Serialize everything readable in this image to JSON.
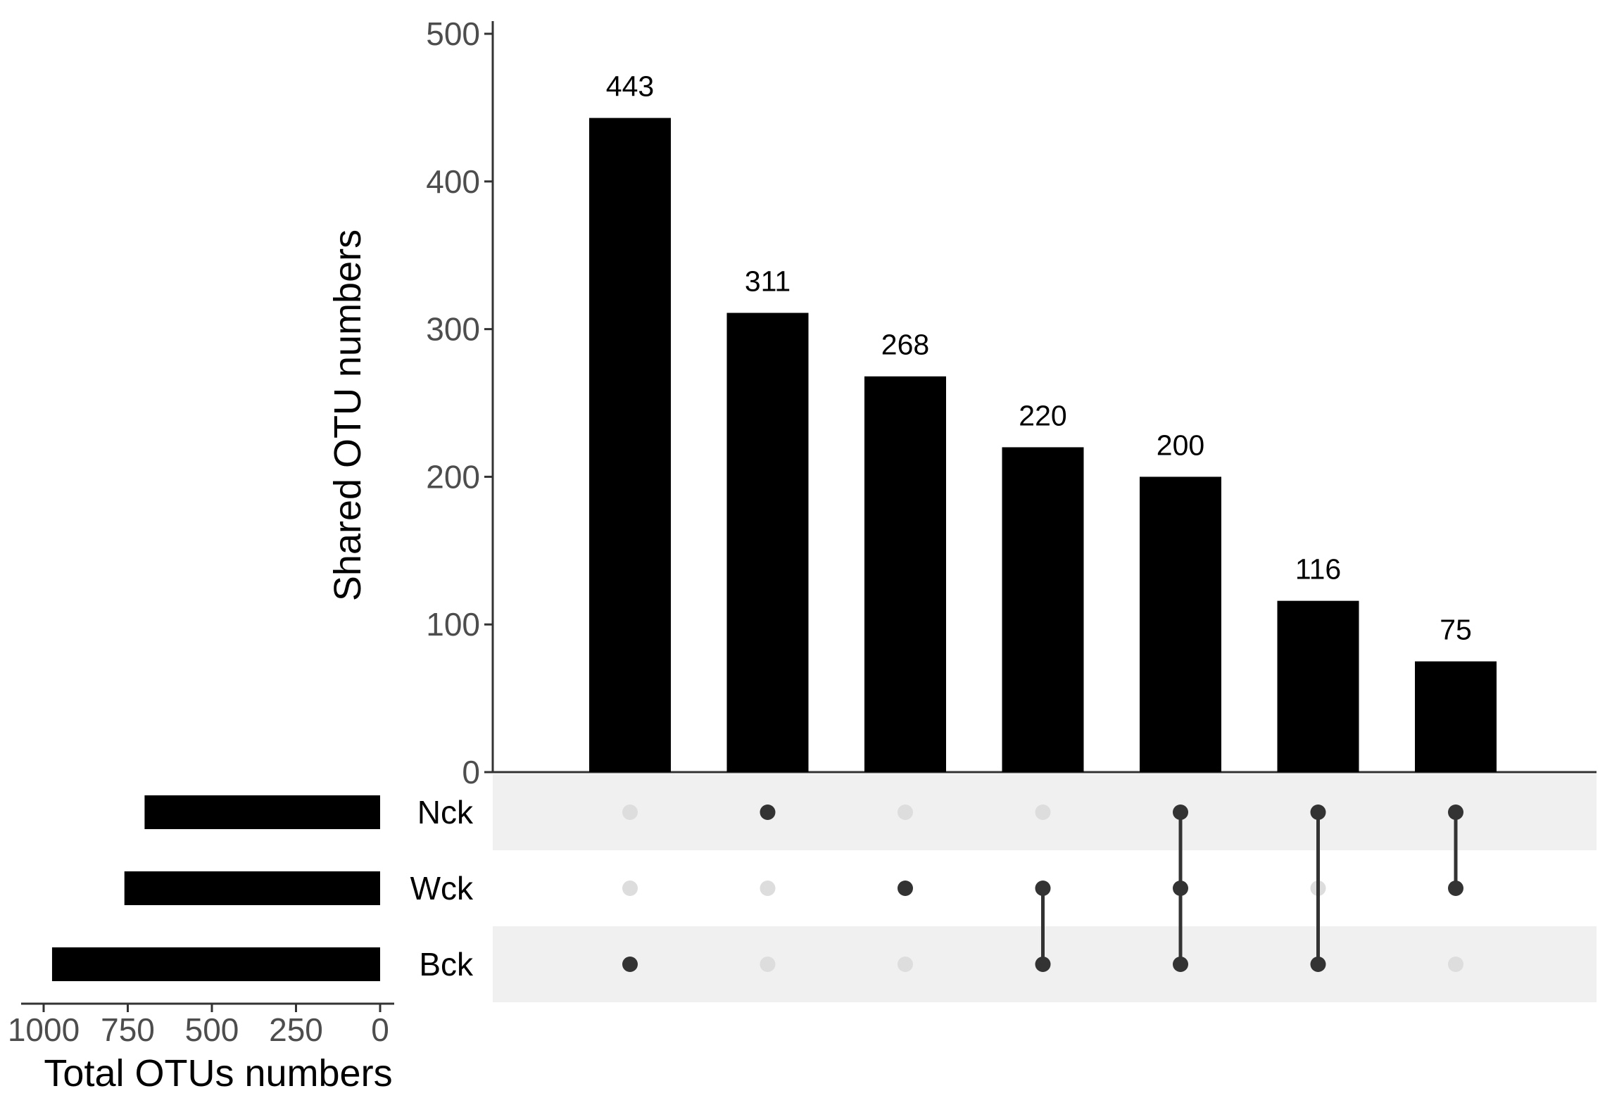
{
  "chart_data": {
    "type": "bar",
    "subtype": "upset",
    "main_bars": {
      "ylabel": "Shared OTU numbers",
      "ylim": [
        0,
        500
      ],
      "yticks": [
        0,
        100,
        200,
        300,
        400,
        500
      ],
      "values": [
        443,
        311,
        268,
        220,
        200,
        116,
        75
      ],
      "value_labels": [
        "443",
        "311",
        "268",
        "220",
        "200",
        "116",
        "75"
      ]
    },
    "sets": [
      "Nck",
      "Wck",
      "Bck"
    ],
    "intersections": [
      [
        "Bck"
      ],
      [
        "Nck"
      ],
      [
        "Wck"
      ],
      [
        "Wck",
        "Bck"
      ],
      [
        "Nck",
        "Wck",
        "Bck"
      ],
      [
        "Nck",
        "Bck"
      ],
      [
        "Nck",
        "Wck"
      ]
    ],
    "set_sizes": {
      "xlabel": "Total OTUs numbers",
      "xlim": [
        1000,
        0
      ],
      "xticks": [
        1000,
        750,
        500,
        250,
        0
      ],
      "values": [
        700,
        760,
        975
      ]
    },
    "grid": false,
    "colors": {
      "bar": "#000000",
      "dot_active": "#333333",
      "dot_inactive": "#dddddd",
      "stripe": "#f0f0f0"
    }
  }
}
